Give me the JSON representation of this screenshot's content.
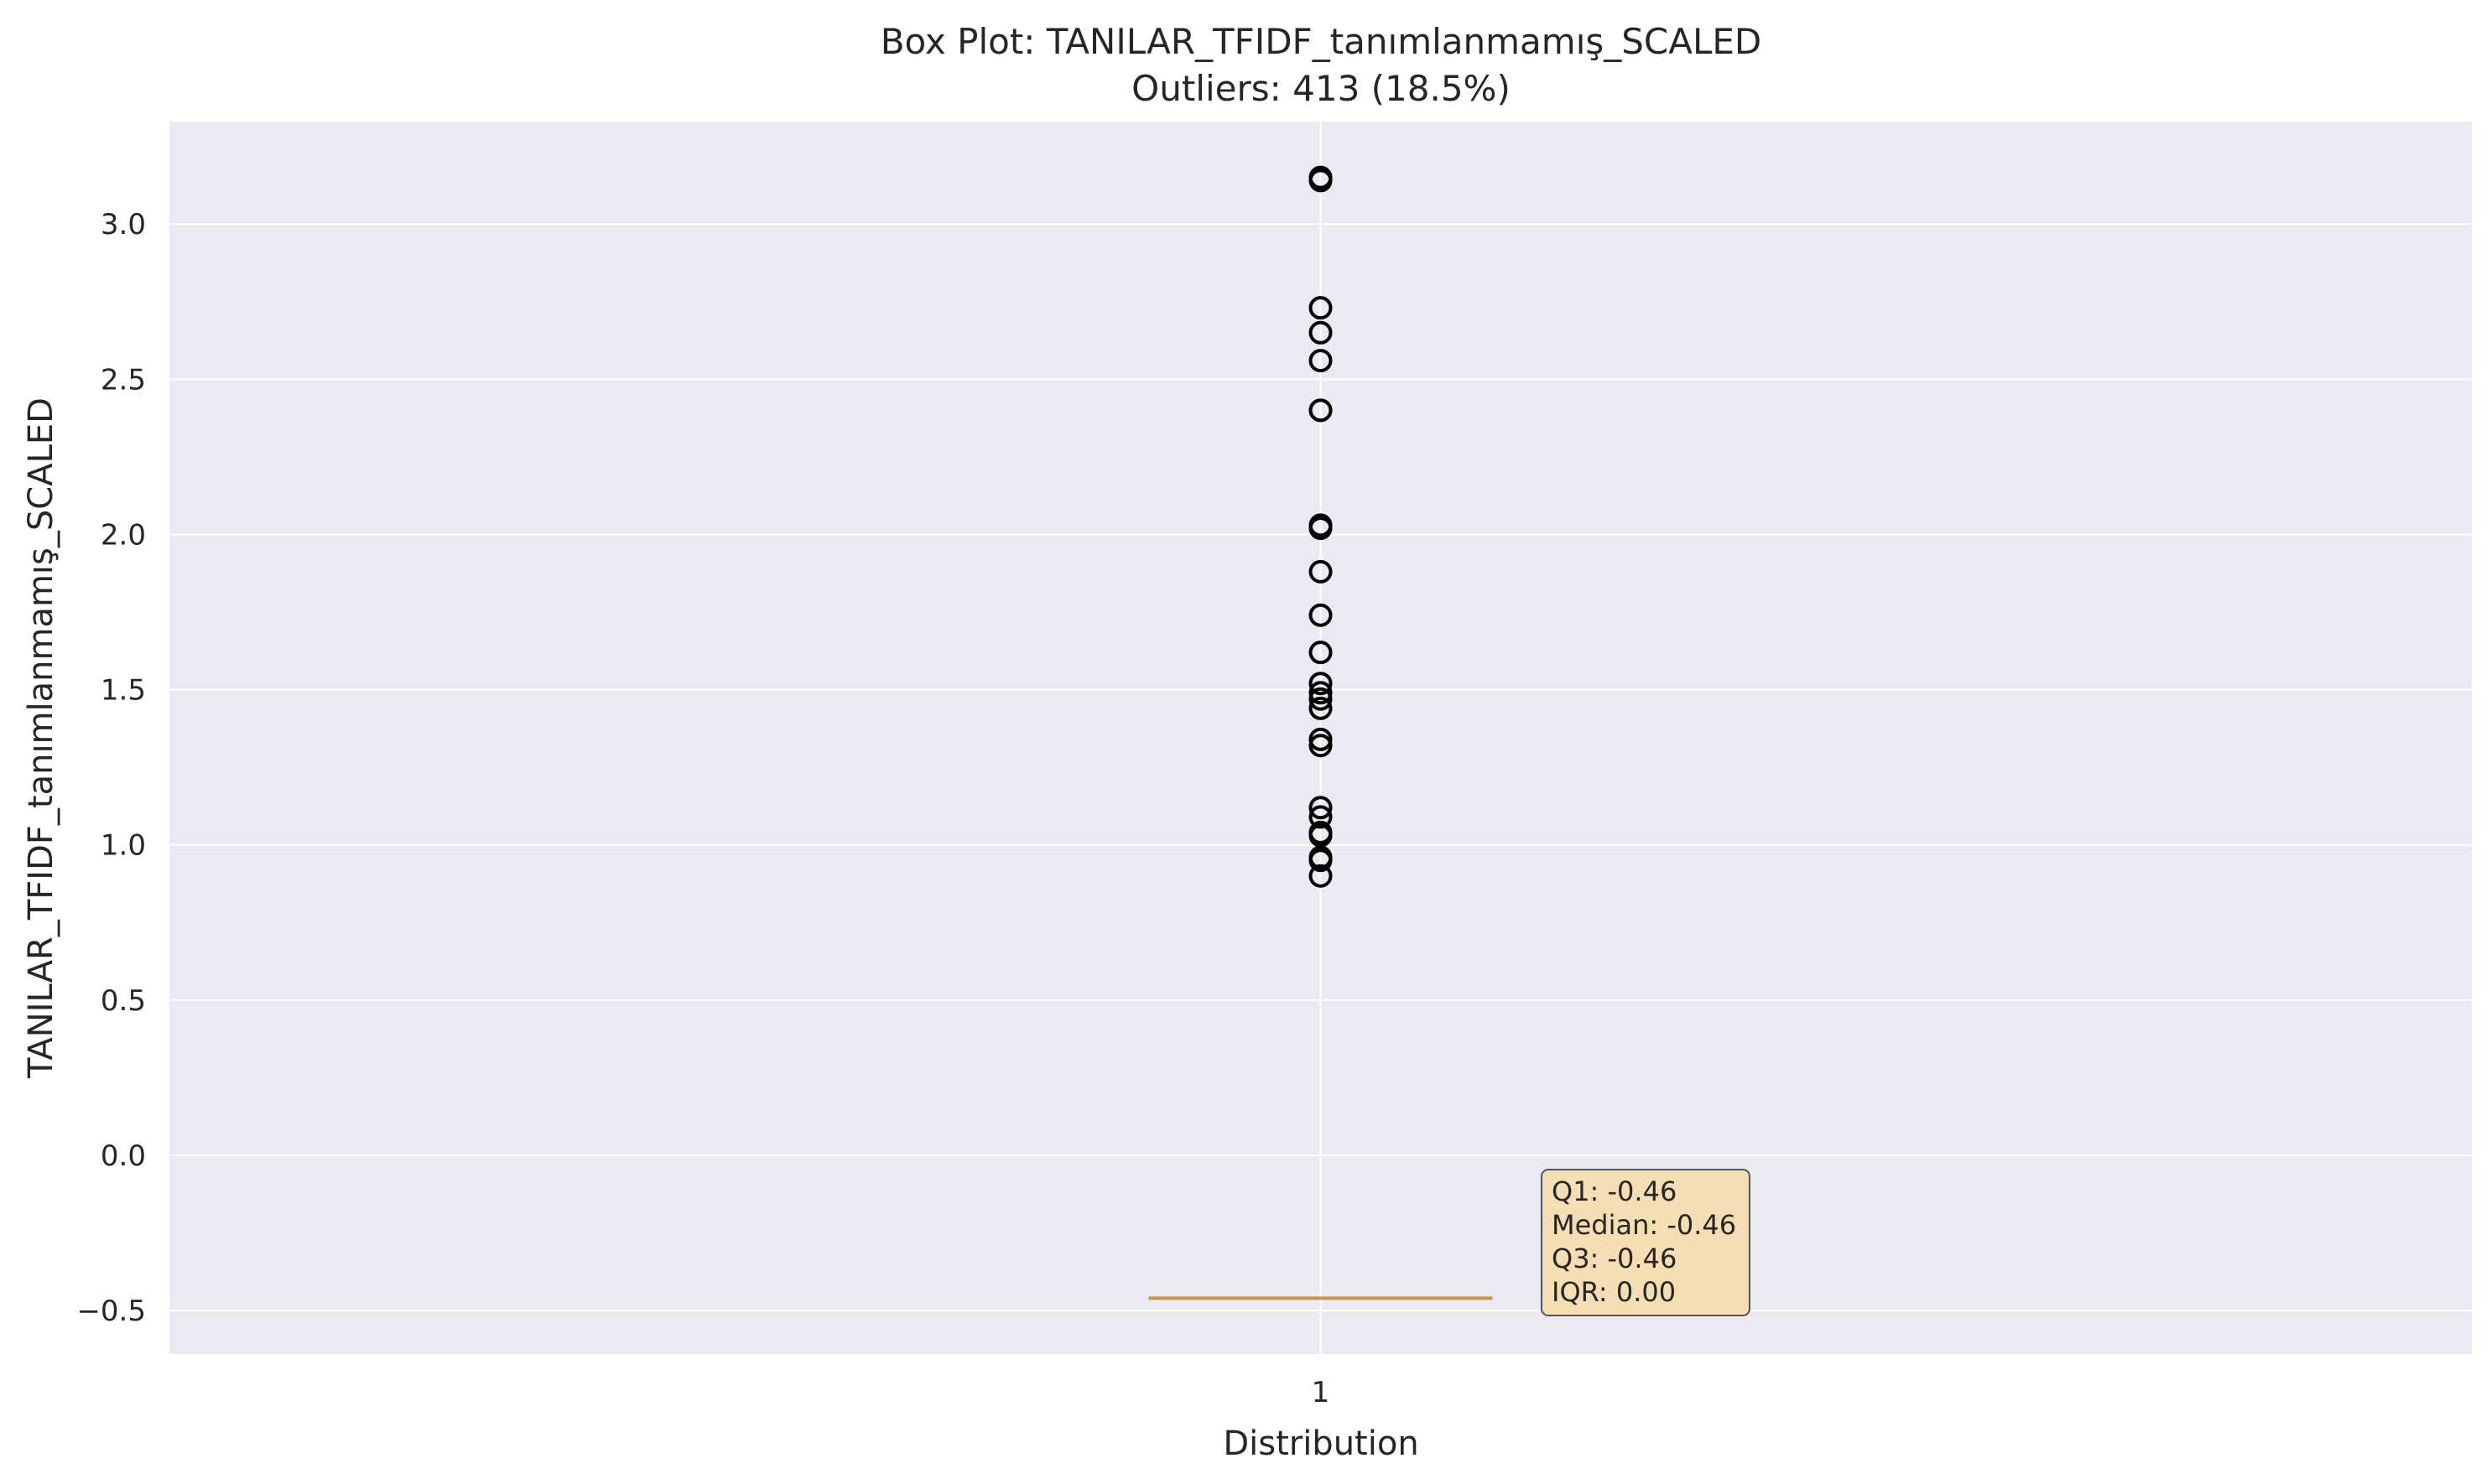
{
  "chart_data": {
    "type": "box",
    "title": "Box Plot: TANILAR_TFIDF_tanımlanmamış_SCALED",
    "subtitle": "Outliers: 413 (18.5%)",
    "xlabel": "Distribution",
    "ylabel": "TANILAR_TFIDF_tanımlanmamış_SCALED",
    "categories": [
      "1"
    ],
    "ylim": [
      -0.64,
      3.33
    ],
    "yticks": [
      -0.5,
      0.0,
      0.5,
      1.0,
      1.5,
      2.0,
      2.5,
      3.0
    ],
    "ytick_labels": [
      "−0.5",
      "0.0",
      "0.5",
      "1.0",
      "1.5",
      "2.0",
      "2.5",
      "3.0"
    ],
    "grid": true,
    "box": {
      "q1": -0.46,
      "median": -0.46,
      "q3": -0.46,
      "whisker_low": -0.46,
      "whisker_high": -0.46
    },
    "outliers": [
      3.14,
      3.15,
      2.73,
      2.65,
      2.56,
      2.4,
      2.4,
      2.03,
      2.02,
      1.88,
      1.74,
      1.62,
      1.52,
      1.49,
      1.47,
      1.44,
      1.34,
      1.32,
      1.12,
      1.09,
      1.04,
      1.03,
      0.96,
      0.95,
      0.9
    ],
    "annotation": {
      "lines": [
        "Q1: -0.46",
        "Median: -0.46",
        "Q3: -0.46",
        "IQR: 0.00"
      ]
    },
    "colors": {
      "plot_background": "#eaeaf2",
      "grid": "#ffffff",
      "box_fill": "#a9cde0",
      "median_line": "#c4964c",
      "outlier_edge": "#000000",
      "annotation_fill": "#f5deb3",
      "annotation_edge": "#555555"
    }
  }
}
